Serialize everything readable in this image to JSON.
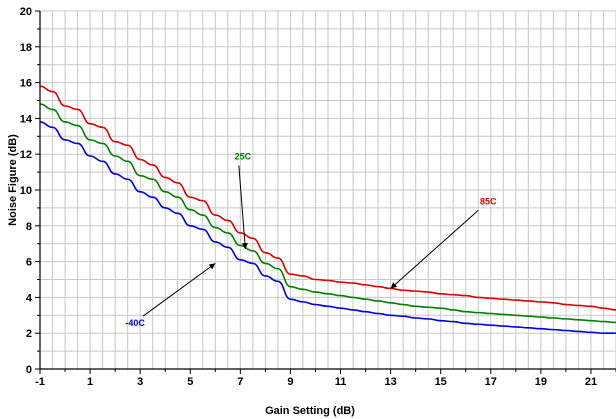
{
  "chart_data": {
    "type": "line",
    "xlabel": "Gain Setting (dB)",
    "ylabel": "Noise Figure (dB)",
    "xlim": [
      -1,
      22
    ],
    "ylim": [
      0,
      20
    ],
    "x_ticks": [
      "-1",
      "1",
      "3",
      "5",
      "7",
      "9",
      "11",
      "13",
      "15",
      "17",
      "19",
      "21"
    ],
    "y_ticks": [
      "0",
      "2",
      "4",
      "6",
      "8",
      "10",
      "12",
      "14",
      "16",
      "18",
      "20"
    ],
    "grid": true,
    "series": [
      {
        "name": "-40C",
        "color": "#0000dd",
        "x": [
          -1,
          -0.5,
          0,
          0.5,
          1,
          1.5,
          2,
          2.5,
          3,
          3.5,
          4,
          4.5,
          5,
          5.5,
          6,
          6.5,
          7,
          7.5,
          8,
          8.5,
          9,
          9.5,
          10,
          10.5,
          11,
          11.5,
          12,
          12.5,
          13,
          13.5,
          14,
          14.5,
          15,
          15.5,
          16,
          16.5,
          17,
          17.5,
          18,
          18.5,
          19,
          19.5,
          20,
          20.5,
          21,
          21.5,
          22
        ],
        "y": [
          13.8,
          13.5,
          12.8,
          12.6,
          11.9,
          11.6,
          10.9,
          10.6,
          9.9,
          9.6,
          9.0,
          8.7,
          8.0,
          7.8,
          7.1,
          6.8,
          6.1,
          5.9,
          5.2,
          4.9,
          3.9,
          3.75,
          3.6,
          3.5,
          3.4,
          3.3,
          3.2,
          3.1,
          3.0,
          2.95,
          2.85,
          2.8,
          2.7,
          2.65,
          2.55,
          2.5,
          2.45,
          2.4,
          2.35,
          2.3,
          2.25,
          2.2,
          2.15,
          2.1,
          2.05,
          2.0,
          2.0
        ]
      },
      {
        "name": "25C",
        "color": "#008000",
        "x": [
          -1,
          -0.5,
          0,
          0.5,
          1,
          1.5,
          2,
          2.5,
          3,
          3.5,
          4,
          4.5,
          5,
          5.5,
          6,
          6.5,
          7,
          7.5,
          8,
          8.5,
          9,
          9.5,
          10,
          10.5,
          11,
          11.5,
          12,
          12.5,
          13,
          13.5,
          14,
          14.5,
          15,
          15.5,
          16,
          16.5,
          17,
          17.5,
          18,
          18.5,
          19,
          19.5,
          20,
          20.5,
          21,
          21.5,
          22
        ],
        "y": [
          14.8,
          14.5,
          13.8,
          13.6,
          12.8,
          12.6,
          11.9,
          11.6,
          10.8,
          10.6,
          9.9,
          9.6,
          8.9,
          8.6,
          7.9,
          7.6,
          6.9,
          6.6,
          5.9,
          5.6,
          4.6,
          4.45,
          4.3,
          4.2,
          4.1,
          4.0,
          3.9,
          3.8,
          3.7,
          3.6,
          3.5,
          3.45,
          3.4,
          3.3,
          3.2,
          3.15,
          3.1,
          3.05,
          3.0,
          2.95,
          2.9,
          2.85,
          2.8,
          2.75,
          2.7,
          2.65,
          2.6
        ]
      },
      {
        "name": "85C",
        "color": "#dd0000",
        "x": [
          -1,
          -0.5,
          0,
          0.5,
          1,
          1.5,
          2,
          2.5,
          3,
          3.5,
          4,
          4.5,
          5,
          5.5,
          6,
          6.5,
          7,
          7.5,
          8,
          8.5,
          9,
          9.5,
          10,
          10.5,
          11,
          11.5,
          12,
          12.5,
          13,
          13.5,
          14,
          14.5,
          15,
          15.5,
          16,
          16.5,
          17,
          17.5,
          18,
          18.5,
          19,
          19.5,
          20,
          20.5,
          21,
          21.5,
          22
        ],
        "y": [
          15.8,
          15.5,
          14.7,
          14.5,
          13.7,
          13.5,
          12.7,
          12.5,
          11.7,
          11.4,
          10.7,
          10.4,
          9.6,
          9.4,
          8.6,
          8.3,
          7.6,
          7.3,
          6.5,
          6.2,
          5.3,
          5.2,
          5.0,
          4.95,
          4.85,
          4.8,
          4.7,
          4.6,
          4.5,
          4.4,
          4.35,
          4.3,
          4.2,
          4.15,
          4.1,
          4.0,
          3.95,
          3.9,
          3.85,
          3.8,
          3.75,
          3.7,
          3.6,
          3.55,
          3.5,
          3.4,
          3.3
        ]
      }
    ],
    "annotations": [
      {
        "text": "25C",
        "color": "#008000",
        "label_x": 7.1,
        "label_y": 11.7,
        "target_x": 7.2,
        "target_y": 6.7
      },
      {
        "text": "85C",
        "color": "#dd0000",
        "label_x": 16.9,
        "label_y": 9.2,
        "target_x": 13.0,
        "target_y": 4.5
      },
      {
        "text": "-40C",
        "color": "#0000dd",
        "label_x": 2.8,
        "label_y": 2.4,
        "target_x": 6.0,
        "target_y": 5.9
      }
    ]
  }
}
